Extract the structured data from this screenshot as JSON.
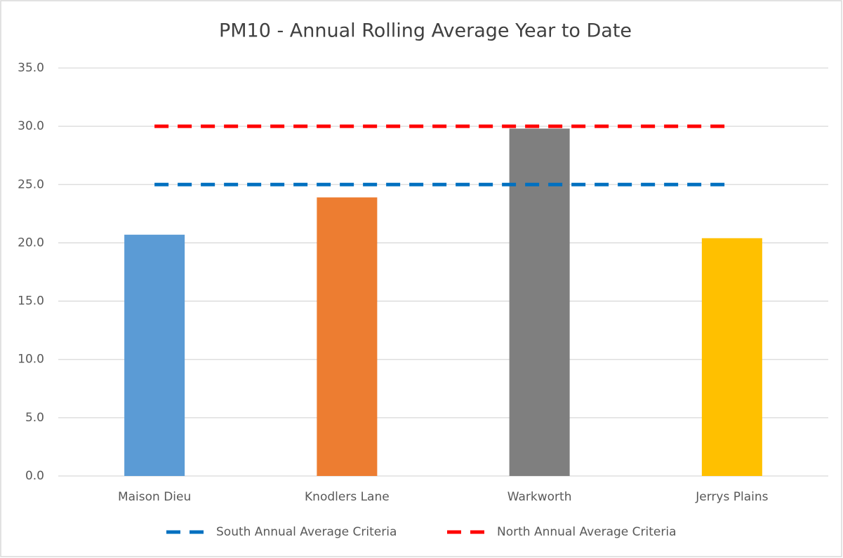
{
  "chart_data": {
    "type": "bar",
    "title": "PM10 - Annual Rolling Average Year to Date",
    "categories": [
      "Maison Dieu",
      "Knodlers Lane",
      "Warkworth",
      "Jerrys Plains"
    ],
    "values": [
      20.7,
      23.9,
      29.8,
      20.4
    ],
    "colors": [
      "#5b9bd5",
      "#ed7d31",
      "#7f7f7f",
      "#ffc000"
    ],
    "series": [
      {
        "name": "South Annual Average Criteria",
        "color": "#0070c0",
        "type": "line",
        "dashed": true,
        "values": [
          25,
          25,
          25,
          25
        ]
      },
      {
        "name": "North Annual Average Criteria",
        "color": "#ff0000",
        "type": "line",
        "dashed": true,
        "values": [
          30,
          30,
          30,
          30
        ]
      }
    ],
    "ylim": [
      0,
      35
    ],
    "yticks": [
      {
        "value": 0,
        "label": "0.0"
      },
      {
        "value": 5,
        "label": "5.0"
      },
      {
        "value": 10,
        "label": "10.0"
      },
      {
        "value": 15,
        "label": "15.0"
      },
      {
        "value": 20,
        "label": "20.0"
      },
      {
        "value": 25,
        "label": "25.0"
      },
      {
        "value": 30,
        "label": "30.0"
      },
      {
        "value": 35,
        "label": "35.0"
      }
    ],
    "grid": true,
    "legend": "bottom"
  }
}
